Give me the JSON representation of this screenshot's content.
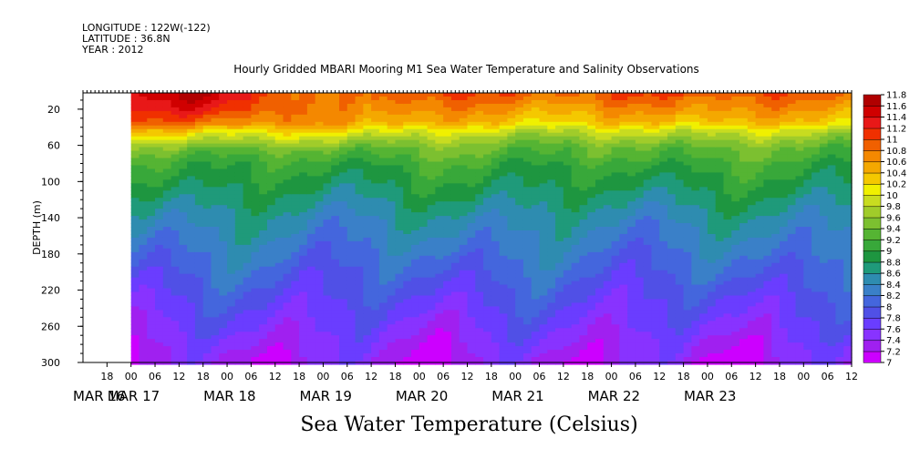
{
  "header": {
    "longitude": "LONGITUDE : 122W(-122)",
    "latitude": "LATITUDE : 36.8N",
    "year": "YEAR : 2012"
  },
  "chart_data": {
    "type": "heatmap",
    "title": "Hourly Gridded MBARI Mooring M1 Sea Water Temperature and Salinity Observations",
    "colorbar_title": "Sea Water Temperature (Celsius)",
    "ylabel": "DEPTH (m)",
    "y_range_m": [
      300,
      2
    ],
    "y_ticks": [
      20,
      60,
      100,
      140,
      180,
      220,
      260,
      300
    ],
    "x_range_hours_since_mar16_00": [
      12,
      204
    ],
    "x_data_start_hour": 24,
    "x_hour_labels": [
      "18",
      "00",
      "06",
      "12",
      "18",
      "00",
      "06",
      "12",
      "18",
      "00",
      "06",
      "12",
      "18",
      "00",
      "06",
      "12",
      "18",
      "00",
      "06",
      "12",
      "18",
      "00",
      "06",
      "12",
      "18",
      "00",
      "06",
      "12",
      "18",
      "00",
      "06",
      "12"
    ],
    "x_day_labels": [
      {
        "label": "MAR 16",
        "hour": 0
      },
      {
        "label": "MAR 17",
        "hour": 24
      },
      {
        "label": "MAR 18",
        "hour": 48
      },
      {
        "label": "MAR 19",
        "hour": 72
      },
      {
        "label": "MAR 20",
        "hour": 96
      },
      {
        "label": "MAR 21",
        "hour": 120
      },
      {
        "label": "MAR 22",
        "hour": 144
      },
      {
        "label": "MAR 23",
        "hour": 168
      }
    ],
    "levels": [
      7.0,
      7.2,
      7.4,
      7.6,
      7.8,
      8.0,
      8.2,
      8.4,
      8.6,
      8.8,
      9.0,
      9.2,
      9.4,
      9.6,
      9.8,
      10.0,
      10.2,
      10.4,
      10.6,
      10.8,
      11.0,
      11.2,
      11.4,
      11.6,
      11.8
    ],
    "level_labels": [
      "7",
      "7.2",
      "7.4",
      "7.6",
      "7.8",
      "8",
      "8.2",
      "8.4",
      "8.6",
      "8.8",
      "9",
      "9.2",
      "9.4",
      "9.6",
      "9.8",
      "10",
      "10.2",
      "10.4",
      "10.6",
      "10.8",
      "11",
      "11.2",
      "11.4",
      "11.6",
      "11.8"
    ],
    "level_colors": [
      "#cc00ff",
      "#a020f0",
      "#8833ff",
      "#6a3dff",
      "#5050e6",
      "#4466dd",
      "#3a80c8",
      "#2e8cb0",
      "#1f9a7a",
      "#1e9640",
      "#38a83a",
      "#55b433",
      "#7cc030",
      "#a0cc2a",
      "#c8dc20",
      "#f0f000",
      "#f4c800",
      "#f4a800",
      "#f48800",
      "#f06000",
      "#f03000",
      "#e81818",
      "#d00000",
      "#b00000"
    ],
    "depth_profile": {
      "depths_m": [
        2,
        20,
        35,
        45,
        55,
        65,
        80,
        100,
        120,
        140,
        160,
        180,
        200,
        220,
        240,
        260,
        280,
        300
      ],
      "temperatures_c": [
        11.0,
        10.9,
        10.7,
        10.2,
        9.8,
        9.4,
        9.1,
        8.9,
        8.7,
        8.5,
        8.35,
        8.2,
        8.05,
        7.9,
        7.75,
        7.6,
        7.45,
        7.3
      ]
    }
  }
}
